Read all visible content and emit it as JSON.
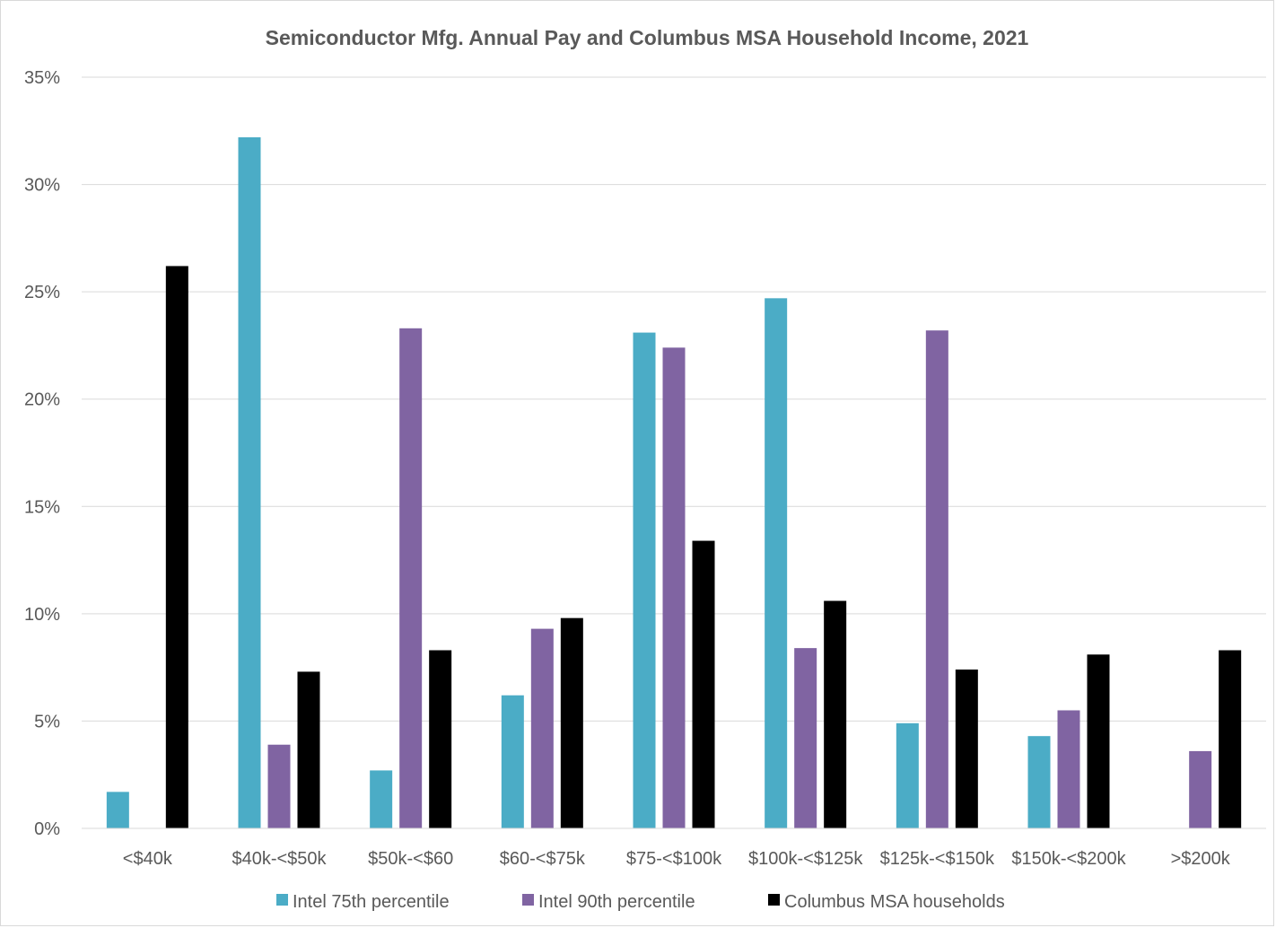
{
  "chart_data": {
    "type": "bar",
    "title": "Semiconductor Mfg. Annual Pay and Columbus MSA Household Income, 2021",
    "xlabel": "",
    "ylabel": "",
    "ylim": [
      0,
      35
    ],
    "y_unit": "%",
    "y_ticks": [
      "0%",
      "5%",
      "10%",
      "15%",
      "20%",
      "25%",
      "30%",
      "35%"
    ],
    "grid": true,
    "legend_position": "bottom",
    "categories": [
      "<$40k",
      "$40k-<$50k",
      "$50k-<$60",
      "$60-<$75k",
      "$75-<$100k",
      "$100k-<$125k",
      "$125k-<$150k",
      "$150k-<$200k",
      ">$200k"
    ],
    "series": [
      {
        "name": "Intel 75th percentile",
        "color": "#4bacc6",
        "values": [
          1.7,
          32.2,
          2.7,
          6.2,
          23.1,
          24.7,
          4.9,
          4.3,
          0
        ]
      },
      {
        "name": "Intel 90th percentile",
        "color": "#8064a2",
        "values": [
          0,
          3.9,
          23.3,
          9.3,
          22.4,
          8.4,
          23.2,
          5.5,
          3.6
        ]
      },
      {
        "name": "Columbus MSA households",
        "color": "#000000",
        "values": [
          26.2,
          7.3,
          8.3,
          9.8,
          13.4,
          10.6,
          7.4,
          8.1,
          8.3
        ]
      }
    ]
  }
}
